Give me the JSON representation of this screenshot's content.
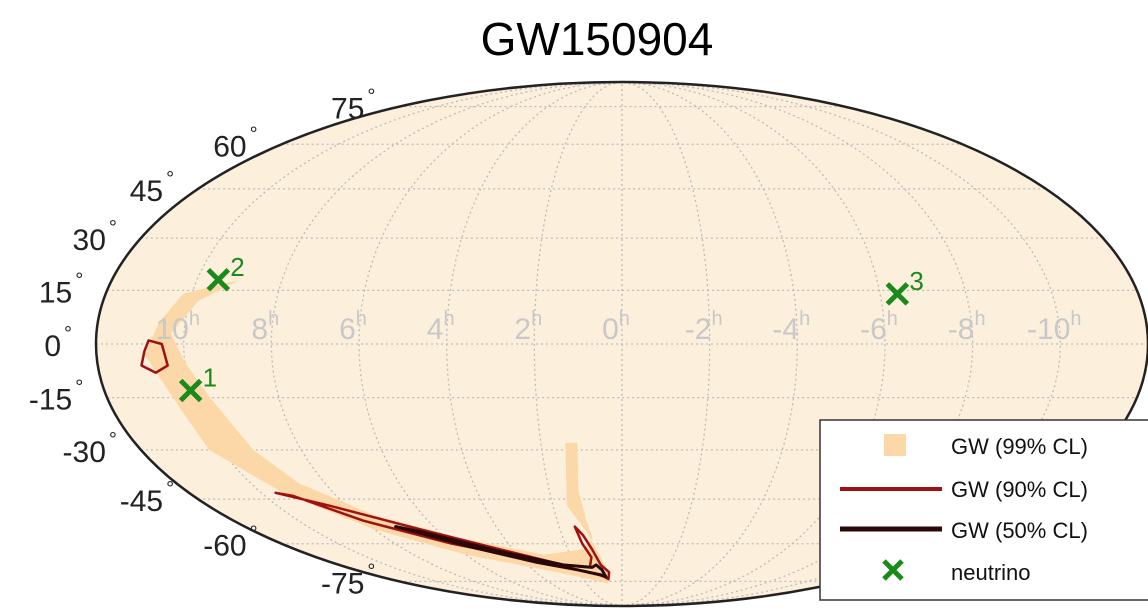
{
  "chart_data": {
    "type": "scatter",
    "projection": "mollweide",
    "title": "GW150904",
    "colors": {
      "sky_fill": "#fcf0dc",
      "gw99": "#fcd8a8",
      "gw90": "#a01010",
      "gw50": "#2a0808",
      "neutrino": "#1a8a1a",
      "grid": "#bbbbbb"
    },
    "latitude_ticks": [
      {
        "value": 75,
        "label": "75"
      },
      {
        "value": 60,
        "label": "60"
      },
      {
        "value": 45,
        "label": "45"
      },
      {
        "value": 30,
        "label": "30"
      },
      {
        "value": 15,
        "label": "15"
      },
      {
        "value": 0,
        "label": "0"
      },
      {
        "value": -15,
        "label": "-15"
      },
      {
        "value": -30,
        "label": "-30"
      },
      {
        "value": -45,
        "label": "-45"
      },
      {
        "value": -60,
        "label": "-60"
      },
      {
        "value": -75,
        "label": "-75"
      }
    ],
    "degree_symbol": "°",
    "ra_ticks": [
      {
        "hours": 10,
        "label": "10"
      },
      {
        "hours": 8,
        "label": "8"
      },
      {
        "hours": 6,
        "label": "6"
      },
      {
        "hours": 4,
        "label": "4"
      },
      {
        "hours": 2,
        "label": "2"
      },
      {
        "hours": 0,
        "label": "0"
      },
      {
        "hours": -2,
        "label": "-2"
      },
      {
        "hours": -4,
        "label": "-4"
      },
      {
        "hours": -6,
        "label": "-6"
      },
      {
        "hours": -8,
        "label": "-8"
      },
      {
        "hours": -10,
        "label": "-10"
      }
    ],
    "ra_unit": "h",
    "neutrinos": [
      {
        "label": "1",
        "ra_hours": 10.0,
        "dec": -13
      },
      {
        "label": "2",
        "ra_hours": 9.5,
        "dec": 18
      },
      {
        "label": "3",
        "ra_hours": -6.4,
        "dec": 14
      }
    ],
    "gw_regions": {
      "cl99_outline": [
        [
          9.0,
          18
        ],
        [
          10.2,
          14
        ],
        [
          10.6,
          6
        ],
        [
          10.9,
          -3
        ],
        [
          10.4,
          -18
        ],
        [
          10.3,
          -30
        ],
        [
          9.4,
          -43
        ],
        [
          8.0,
          -55
        ],
        [
          6.0,
          -64
        ],
        [
          3.5,
          -70
        ],
        [
          1.6,
          -74
        ],
        [
          0.8,
          -76
        ],
        [
          0.6,
          -72
        ],
        [
          0.9,
          -63
        ],
        [
          1.2,
          -55
        ],
        [
          1.6,
          -47
        ],
        [
          1.5,
          -40
        ],
        [
          1.4,
          -28
        ],
        [
          1.1,
          -28
        ],
        [
          1.2,
          -42
        ],
        [
          1.1,
          -52
        ],
        [
          1.0,
          -58
        ],
        [
          1.4,
          -62
        ],
        [
          3.0,
          -64
        ],
        [
          5.5,
          -58
        ],
        [
          7.5,
          -50
        ],
        [
          8.7,
          -40
        ],
        [
          9.2,
          -30
        ],
        [
          9.6,
          -15
        ],
        [
          10.0,
          -5
        ],
        [
          10.3,
          3
        ],
        [
          9.8,
          12
        ]
      ],
      "cl90_islands": [
        [
          [
            10.8,
            1
          ],
          [
            10.5,
            0
          ],
          [
            10.4,
            -6
          ],
          [
            10.7,
            -8
          ],
          [
            11.0,
            -6
          ],
          [
            10.9,
            -2
          ]
        ],
        [
          [
            9.2,
            -44
          ],
          [
            8.0,
            -52
          ],
          [
            6.0,
            -60
          ],
          [
            3.5,
            -66
          ],
          [
            2.0,
            -70
          ],
          [
            1.0,
            -72
          ],
          [
            0.7,
            -74
          ],
          [
            0.6,
            -71
          ],
          [
            0.9,
            -68
          ],
          [
            1.1,
            -62
          ],
          [
            1.3,
            -57
          ],
          [
            1.5,
            -54
          ],
          [
            1.4,
            -60
          ],
          [
            1.2,
            -65
          ],
          [
            1.4,
            -69
          ],
          [
            2.5,
            -68
          ],
          [
            4.5,
            -62
          ],
          [
            6.5,
            -55
          ],
          [
            8.5,
            -47
          ],
          [
            9.6,
            -43
          ]
        ]
      ],
      "cl50_islands": [
        [
          [
            7.2,
            -54
          ],
          [
            5.5,
            -61
          ],
          [
            3.5,
            -67
          ],
          [
            2.0,
            -70
          ],
          [
            1.1,
            -72
          ],
          [
            0.8,
            -73
          ],
          [
            0.9,
            -70
          ],
          [
            1.1,
            -68
          ],
          [
            1.3,
            -69
          ],
          [
            2.5,
            -68
          ],
          [
            4.5,
            -63
          ],
          [
            6.5,
            -56
          ]
        ]
      ]
    },
    "legend": {
      "position": "bottom-right",
      "items": [
        {
          "key": "gw99",
          "label": "GW (99% CL)"
        },
        {
          "key": "gw90",
          "label": "GW (90% CL)"
        },
        {
          "key": "gw50",
          "label": "GW (50% CL)"
        },
        {
          "key": "neutrino",
          "label": "neutrino"
        }
      ]
    },
    "grid": true
  }
}
